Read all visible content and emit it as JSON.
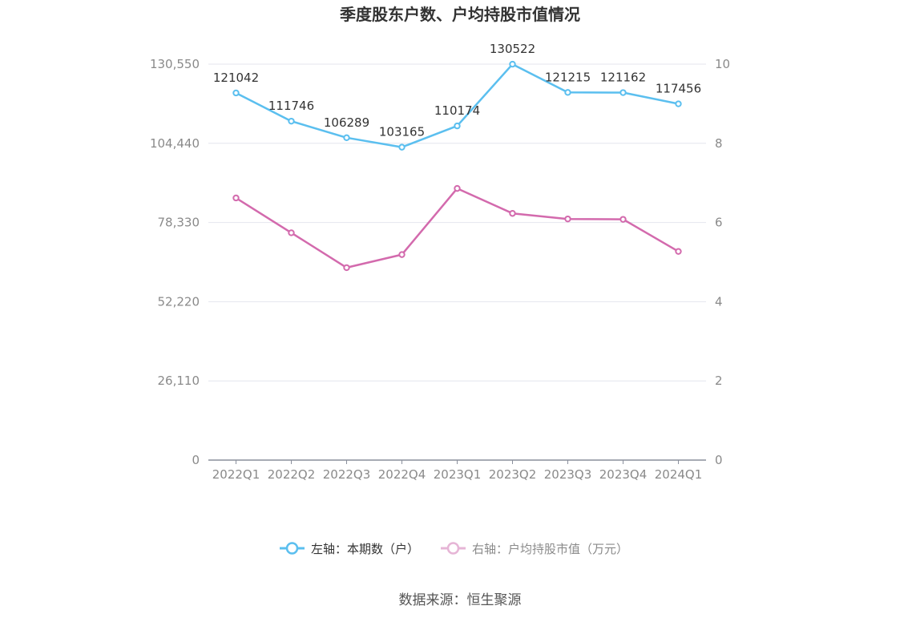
{
  "chart_data": {
    "type": "line",
    "title": "季度股东户数、户均持股市值情况",
    "categories": [
      "2022Q1",
      "2022Q2",
      "2022Q3",
      "2022Q4",
      "2023Q1",
      "2023Q2",
      "2023Q3",
      "2023Q4",
      "2024Q1"
    ],
    "series": [
      {
        "name": "左轴：本期数（户）",
        "axis": "left",
        "color": "#5bbfef",
        "values": [
          121042,
          111746,
          106289,
          103165,
          110174,
          130522,
          121215,
          121162,
          117456
        ],
        "labels": [
          "121042",
          "111746",
          "106289",
          "103165",
          "110174",
          "130522",
          "121215",
          "121162",
          "117456"
        ]
      },
      {
        "name": "右轴：户均持股市值（万元）",
        "axis": "right",
        "color": "#d36aad",
        "values": [
          6.62,
          5.74,
          4.86,
          5.19,
          6.86,
          6.23,
          6.09,
          6.08,
          5.27
        ]
      }
    ],
    "y_left": {
      "ylim": [
        0,
        130550
      ],
      "ticks": [
        0,
        26110,
        52220,
        78330,
        104440,
        130550
      ],
      "tick_labels": [
        "0",
        "26,110",
        "52,220",
        "78,330",
        "104,440",
        "130,550"
      ]
    },
    "y_right": {
      "ylim": [
        0,
        10
      ],
      "ticks": [
        0,
        2,
        4,
        6,
        8,
        10
      ],
      "tick_labels": [
        "0",
        "2",
        "4",
        "6",
        "8",
        "10"
      ]
    },
    "grid": true,
    "legend_position": "bottom"
  },
  "legend": {
    "left_label": "左轴：本期数（户）",
    "right_label": "右轴：户均持股市值（万元）"
  },
  "source": "数据来源：恒生聚源",
  "colors": {
    "grid": "#e4e6ee",
    "axis": "#8a8f9c",
    "series_left": "#5bbfef",
    "series_right": "#d36aad",
    "legend_right_muted": "#e6b5d6"
  }
}
